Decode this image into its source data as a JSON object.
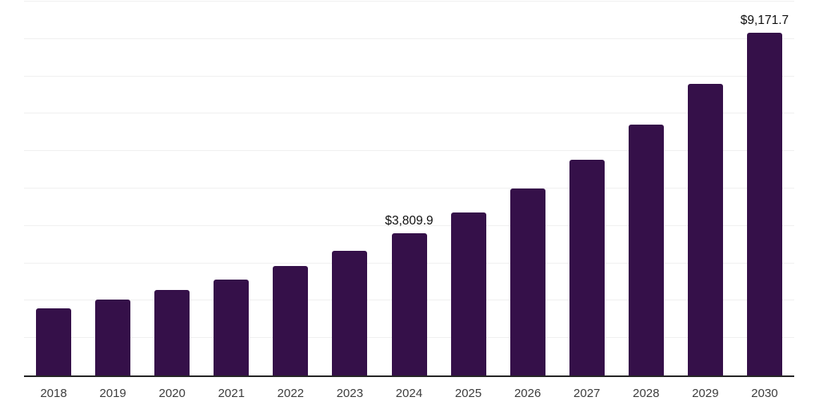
{
  "chart_data": {
    "type": "bar",
    "title": "",
    "xlabel": "",
    "ylabel": "",
    "categories": [
      "2018",
      "2019",
      "2020",
      "2021",
      "2022",
      "2023",
      "2024",
      "2025",
      "2026",
      "2027",
      "2028",
      "2029",
      "2030"
    ],
    "values": [
      1795,
      2020,
      2285,
      2575,
      2930,
      3330,
      3809.9,
      4350,
      5000,
      5770,
      6700,
      7810,
      9171.7
    ],
    "visible_value_labels": {
      "2024": "$3,809.9",
      "2030": "$9,171.7"
    },
    "ylim": [
      0,
      10000
    ],
    "gridline_step": 1000,
    "grid": "horizontal-only",
    "legend": "none",
    "colors": {
      "bar": "#351049",
      "gridline": "#f0f0f0",
      "axis_line": "#262626",
      "tick_label": "#3d3d3d",
      "value_label": "#101010",
      "background": "#ffffff"
    }
  }
}
